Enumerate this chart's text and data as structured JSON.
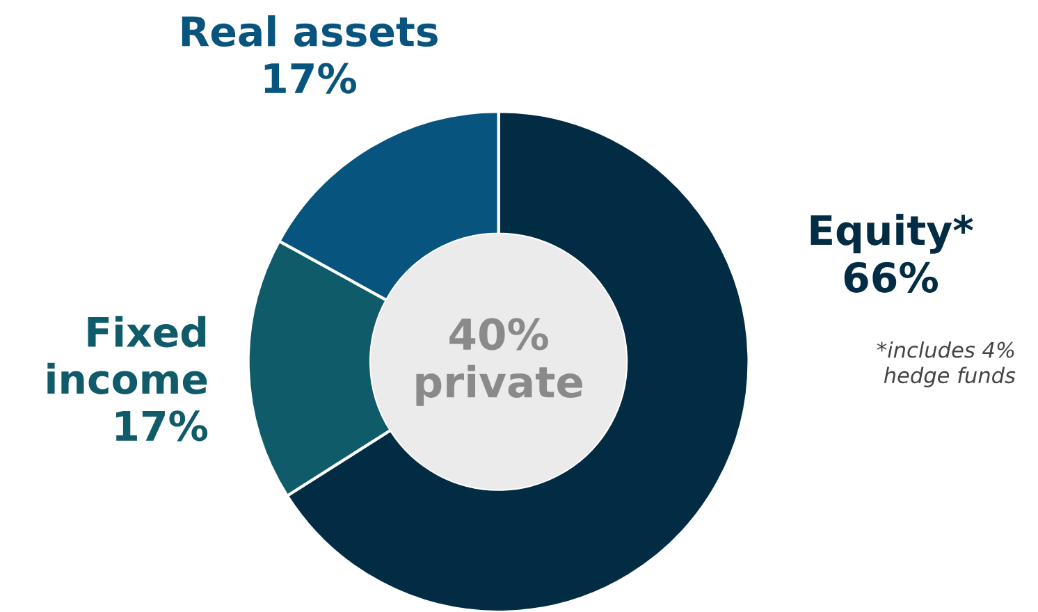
{
  "chart_data": {
    "type": "donut",
    "categories": [
      "Equity*",
      "Fixed\nincome",
      "Real assets"
    ],
    "values": [
      66,
      17,
      17
    ],
    "value_labels": [
      "66%",
      "17%",
      "17%"
    ],
    "colors": [
      "#022b44",
      "#0f5b69",
      "#07547f"
    ],
    "annotations": [
      "40%\nprivate",
      "*includes 4%\nhedge funds"
    ],
    "legend": false
  }
}
